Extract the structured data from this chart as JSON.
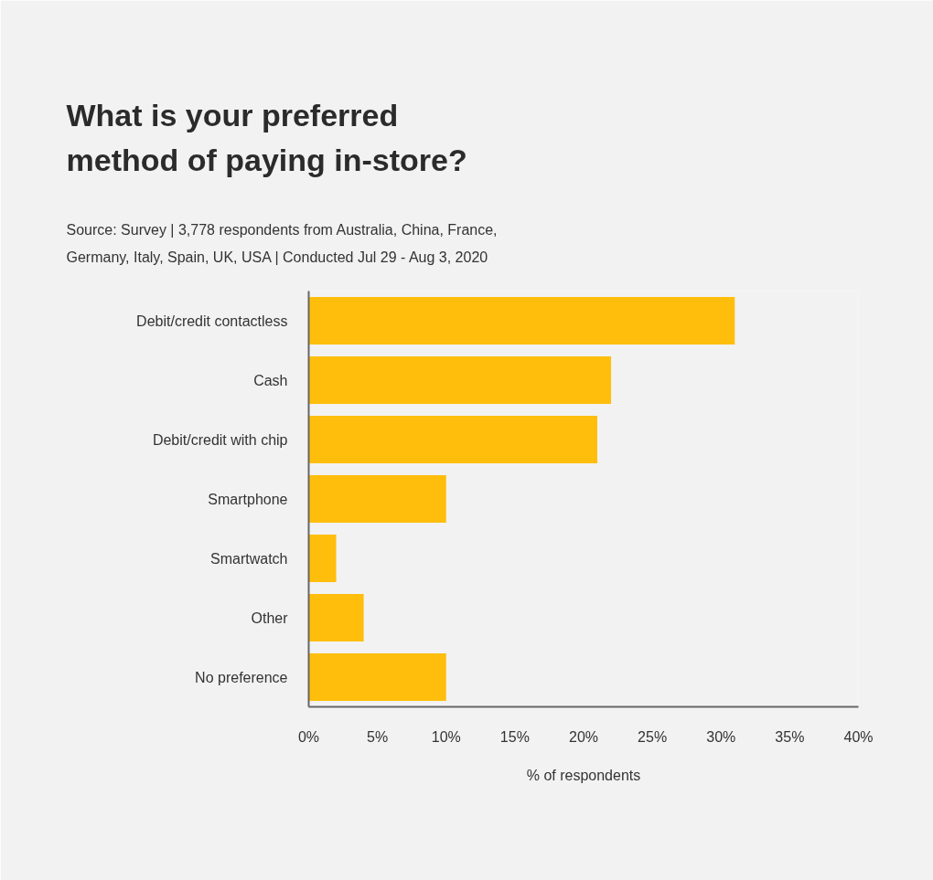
{
  "chart_data": {
    "type": "bar",
    "orientation": "horizontal",
    "title": "What is your preferred method of paying in-store?",
    "annotations": [
      "Source: Survey | 3,778 respondents from Australia, China, France, Germany, Italy, Spain, UK, USA | Conducted Jul 29 - Aug 3, 2020"
    ],
    "xlabel": "% of respondents",
    "categories": [
      "Debit/credit contactless",
      "Cash",
      "Debit/credit with chip",
      "Smartphone",
      "Smartwatch",
      "Other",
      "No preference"
    ],
    "values": [
      31,
      22,
      21,
      10,
      2,
      4,
      10
    ],
    "color": "#ffbe0b",
    "xlim": [
      0,
      40
    ],
    "xticks": [
      {
        "value": 0,
        "label": "0%"
      },
      {
        "value": 5,
        "label": "5%"
      },
      {
        "value": 10,
        "label": "10%"
      },
      {
        "value": 15,
        "label": "15%"
      },
      {
        "value": 20,
        "label": "20%"
      },
      {
        "value": 25,
        "label": "25%"
      },
      {
        "value": 30,
        "label": "30%"
      },
      {
        "value": 35,
        "label": "35%"
      },
      {
        "value": 40,
        "label": "40%"
      }
    ]
  }
}
